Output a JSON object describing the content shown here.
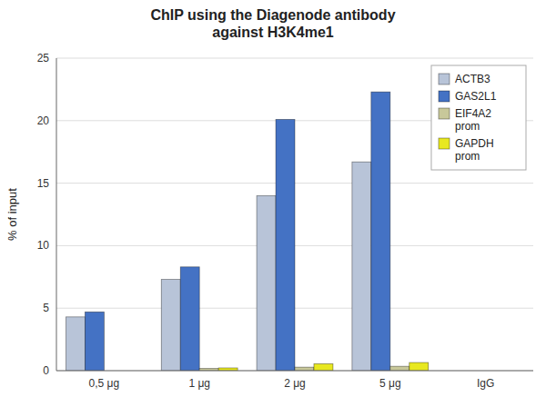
{
  "chart_data": {
    "type": "bar",
    "title": "ChIP using the Diagenode antibody\nagainst H3K4me1",
    "ylabel": "% of input",
    "categories": [
      "0,5 μg",
      "1 μg",
      "2 μg",
      "5 μg",
      "IgG"
    ],
    "series": [
      {
        "name": "ACTB3",
        "color": "#b8c4d8",
        "values": [
          4.3,
          7.3,
          14.0,
          16.7,
          0.0
        ]
      },
      {
        "name": "GAS2L1",
        "color": "#4472c4",
        "values": [
          4.7,
          8.3,
          20.1,
          22.3,
          0.0
        ]
      },
      {
        "name": "EIF4A2\nprom",
        "color": "#c8c89a",
        "values": [
          0.0,
          0.18,
          0.28,
          0.35,
          0.0
        ]
      },
      {
        "name": "GAPDH\nprom",
        "color": "#e8e820",
        "values": [
          0.0,
          0.22,
          0.55,
          0.65,
          0.0
        ]
      }
    ],
    "ylim": [
      0,
      25
    ],
    "yticks": [
      0,
      5,
      10,
      15,
      20,
      25
    ],
    "grid": true,
    "legend": "upper right"
  }
}
